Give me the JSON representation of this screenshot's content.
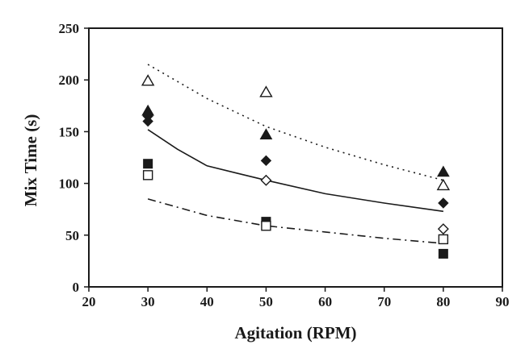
{
  "chart_data": {
    "type": "scatter",
    "title": "",
    "xlabel": "Agitation (RPM)",
    "ylabel": "Mix Time (s)",
    "xlim": [
      20,
      90
    ],
    "ylim": [
      0,
      250
    ],
    "xticks": [
      20,
      30,
      40,
      50,
      60,
      70,
      80,
      90
    ],
    "yticks": [
      0,
      50,
      100,
      150,
      200,
      250
    ],
    "grid": false,
    "legend": "none",
    "series": [
      {
        "marker": "open-triangle",
        "color": "#1a1a1a",
        "points": [
          [
            30,
            199
          ],
          [
            50,
            188
          ],
          [
            80,
            98
          ]
        ]
      },
      {
        "marker": "filled-triangle",
        "color": "#1a1a1a",
        "points": [
          [
            30,
            170
          ],
          [
            50,
            147
          ],
          [
            80,
            111
          ]
        ]
      },
      {
        "marker": "filled-diamond",
        "color": "#1a1a1a",
        "points": [
          [
            30,
            165
          ],
          [
            30,
            160
          ],
          [
            50,
            122
          ],
          [
            80,
            81
          ]
        ]
      },
      {
        "marker": "open-diamond",
        "color": "#1a1a1a",
        "points": [
          [
            50,
            103
          ],
          [
            80,
            56
          ]
        ]
      },
      {
        "marker": "filled-square",
        "color": "#1a1a1a",
        "points": [
          [
            30,
            119
          ],
          [
            50,
            63
          ],
          [
            80,
            32
          ]
        ]
      },
      {
        "marker": "open-square",
        "color": "#1a1a1a",
        "points": [
          [
            30,
            108
          ],
          [
            50,
            59
          ],
          [
            80,
            46
          ]
        ]
      }
    ],
    "trend_lines": [
      {
        "style": "dotted",
        "color": "#1a1a1a",
        "points": [
          [
            30,
            215
          ],
          [
            40,
            182
          ],
          [
            50,
            155
          ],
          [
            60,
            135
          ],
          [
            70,
            118
          ],
          [
            80,
            103
          ]
        ]
      },
      {
        "style": "solid",
        "color": "#1a1a1a",
        "points": [
          [
            30,
            152
          ],
          [
            35,
            133
          ],
          [
            40,
            117
          ],
          [
            45,
            110
          ],
          [
            50,
            103
          ],
          [
            60,
            90
          ],
          [
            70,
            81
          ],
          [
            80,
            73
          ]
        ]
      },
      {
        "style": "dash-dot",
        "color": "#1a1a1a",
        "points": [
          [
            30,
            85
          ],
          [
            40,
            69
          ],
          [
            50,
            59
          ],
          [
            60,
            53
          ],
          [
            70,
            47
          ],
          [
            80,
            42
          ]
        ]
      }
    ]
  }
}
